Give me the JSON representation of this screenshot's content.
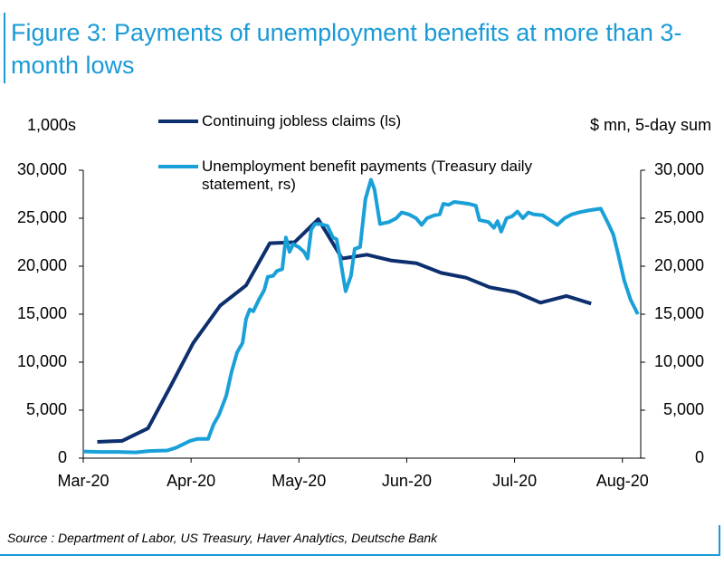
{
  "chart_data": {
    "type": "line",
    "title": "Figure 3: Payments of unemployment benefits at more than 3-month lows",
    "y_label": "1,000s",
    "y2_label": "$ mn, 5-day sum",
    "source": "Source : Department of Labor, US Treasury, Haver Analytics, Deutsche Bank",
    "xlim": [
      0,
      5.17
    ],
    "xticks": [
      {
        "value": 0,
        "label": "Mar-20"
      },
      {
        "value": 1,
        "label": "Apr-20"
      },
      {
        "value": 2,
        "label": "May-20"
      },
      {
        "value": 3,
        "label": "Jun-20"
      },
      {
        "value": 4,
        "label": "Jul-20"
      },
      {
        "value": 5,
        "label": "Aug-20"
      }
    ],
    "ylim": [
      0,
      30000
    ],
    "yticks": [
      0,
      {
        "value": 5000,
        "label": "5,000"
      },
      {
        "value": 10000,
        "label": "10,000"
      },
      {
        "value": 15000,
        "label": "15,000"
      },
      {
        "value": 20000,
        "label": "20,000"
      },
      {
        "value": 25000,
        "label": "25,000"
      },
      {
        "value": 30000,
        "label": "30,000"
      }
    ],
    "y2lim": [
      0,
      30000
    ],
    "y2ticks": [
      0,
      {
        "value": 5000,
        "label": "5,000"
      },
      {
        "value": 10000,
        "label": "10,000"
      },
      {
        "value": 15000,
        "label": "15,000"
      },
      {
        "value": 20000,
        "label": "20,000"
      },
      {
        "value": 25000,
        "label": "25,000"
      },
      {
        "value": 30000,
        "label": "30,000"
      }
    ],
    "grid": false,
    "series": [
      {
        "name": "Continuing jobless claims (ls)",
        "color": "#0d2f6e",
        "axis": "y",
        "x": [
          0.13,
          0.36,
          0.6,
          0.81,
          1.02,
          1.27,
          1.51,
          1.73,
          1.96,
          2.18,
          2.4,
          2.63,
          2.85,
          3.09,
          3.32,
          3.55,
          3.77,
          4.01,
          4.24,
          4.48,
          4.71
        ],
        "values": [
          1700,
          1800,
          3100,
          7500,
          12000,
          15900,
          18000,
          22400,
          22500,
          24900,
          20800,
          21200,
          20600,
          20300,
          19300,
          18800,
          17800,
          17300,
          16200,
          16900,
          16100
        ]
      },
      {
        "name": "Unemployment benefit payments (Treasury daily statement, rs)",
        "color": "#1aa0d8",
        "axis": "y2",
        "x": [
          0,
          0.151,
          0.319,
          0.487,
          0.612,
          0.78,
          0.864,
          0.99,
          1.057,
          1.158,
          1.208,
          1.258,
          1.326,
          1.376,
          1.426,
          1.477,
          1.51,
          1.544,
          1.577,
          1.628,
          1.678,
          1.711,
          1.762,
          1.795,
          1.846,
          1.879,
          1.913,
          1.946,
          1.997,
          2.047,
          2.081,
          2.114,
          2.148,
          2.198,
          2.265,
          2.315,
          2.349,
          2.383,
          2.433,
          2.483,
          2.517,
          2.567,
          2.617,
          2.668,
          2.701,
          2.752,
          2.836,
          2.903,
          2.953,
          3.02,
          3.087,
          3.138,
          3.188,
          3.255,
          3.305,
          3.339,
          3.389,
          3.44,
          3.507,
          3.574,
          3.641,
          3.674,
          3.758,
          3.809,
          3.842,
          3.876,
          3.926,
          3.977,
          4.027,
          4.077,
          4.128,
          4.178,
          4.262,
          4.329,
          4.396,
          4.463,
          4.53,
          4.597,
          4.681,
          4.799,
          4.866,
          4.916,
          4.966,
          5.017,
          5.076,
          5.143
        ],
        "values": [
          700,
          650,
          650,
          600,
          750,
          800,
          1100,
          1800,
          2000,
          2000,
          3500,
          4500,
          6500,
          9000,
          11000,
          12000,
          14500,
          15500,
          15300,
          16500,
          17500,
          18900,
          19000,
          19500,
          19700,
          23000,
          21500,
          22300,
          22000,
          21500,
          20800,
          23800,
          24400,
          24400,
          24200,
          23000,
          22800,
          20800,
          17400,
          19000,
          21800,
          22000,
          27000,
          29000,
          28000,
          24400,
          24600,
          25000,
          25600,
          25400,
          25000,
          24300,
          25000,
          25300,
          25400,
          26500,
          26400,
          26700,
          26600,
          26500,
          26300,
          24800,
          24600,
          24000,
          24700,
          23600,
          25000,
          25200,
          25700,
          25000,
          25600,
          25400,
          25300,
          24800,
          24300,
          25000,
          25400,
          25600,
          25800,
          26000,
          24500,
          23300,
          21000,
          18500,
          16500,
          15000
        ]
      }
    ]
  }
}
